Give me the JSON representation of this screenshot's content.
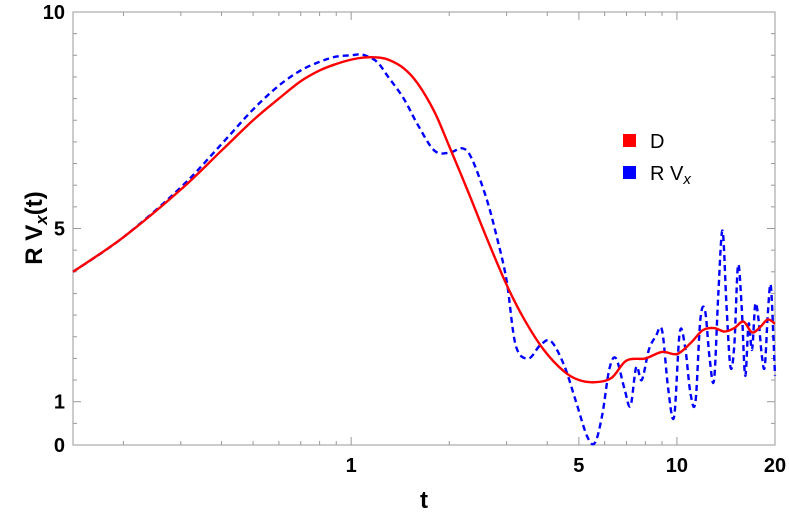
{
  "chart_data": {
    "type": "line",
    "title": "",
    "xlabel": "t",
    "ylabel_main": "R V",
    "ylabel_sub": "x",
    "ylabel_tail": "(t)",
    "x_scale": "log",
    "xlim": [
      0.14,
      20
    ],
    "ylim": [
      0,
      10
    ],
    "x_ticks": [
      1,
      5,
      10,
      20
    ],
    "x_tick_labels": [
      "1",
      "5",
      "10",
      "20"
    ],
    "y_ticks": [
      0,
      1,
      5,
      10
    ],
    "y_tick_labels": [
      "0",
      "1",
      "5",
      "10"
    ],
    "grid": false,
    "legend_position": "right",
    "series": [
      {
        "name": "D",
        "legend_main": "D",
        "legend_sub": "",
        "color": "#ff0000",
        "style": "solid",
        "x": [
          0.14,
          0.2,
          0.3,
          0.4,
          0.5,
          0.6,
          0.7,
          0.8,
          0.9,
          1.0,
          1.1,
          1.2,
          1.3,
          1.45,
          1.6,
          1.8,
          2.0,
          2.3,
          2.6,
          3.0,
          3.4,
          3.9,
          4.5,
          5.0,
          5.6,
          6.3,
          7.0,
          8.0,
          9.0,
          10.0,
          11.0,
          12.0,
          13.0,
          14.0,
          15.0,
          16.0,
          17.0,
          18.0,
          19.0,
          20.0
        ],
        "values": [
          4.0,
          4.8,
          5.9,
          6.8,
          7.5,
          8.0,
          8.4,
          8.65,
          8.8,
          8.9,
          8.95,
          8.95,
          8.9,
          8.7,
          8.35,
          7.7,
          6.9,
          5.8,
          4.8,
          3.7,
          2.9,
          2.2,
          1.7,
          1.5,
          1.45,
          1.55,
          1.95,
          2.0,
          2.15,
          2.1,
          2.35,
          2.65,
          2.7,
          2.62,
          2.7,
          2.85,
          2.6,
          2.72,
          2.9,
          2.8
        ]
      },
      {
        "name": "R V_x",
        "legend_main": "R V",
        "legend_sub": "x",
        "color": "#0000ff",
        "style": "dashed",
        "x": [
          0.14,
          0.2,
          0.3,
          0.4,
          0.5,
          0.6,
          0.7,
          0.8,
          0.9,
          1.0,
          1.05,
          1.1,
          1.2,
          1.3,
          1.45,
          1.6,
          1.8,
          2.0,
          2.2,
          2.35,
          2.6,
          2.8,
          3.0,
          3.2,
          3.5,
          3.8,
          4.1,
          4.5,
          4.9,
          5.3,
          5.6,
          5.9,
          6.2,
          6.5,
          6.9,
          7.2,
          7.5,
          7.8,
          8.2,
          8.6,
          9.0,
          9.4,
          9.8,
          10.2,
          10.6,
          11.0,
          11.4,
          11.8,
          12.2,
          12.6,
          13.0,
          13.4,
          13.8,
          14.2,
          14.6,
          15.0,
          15.4,
          15.8,
          16.2,
          16.6,
          17.0,
          17.4,
          17.8,
          18.2,
          18.6,
          19.0,
          19.4,
          19.8,
          20.0
        ],
        "values": [
          4.0,
          4.8,
          5.95,
          6.95,
          7.75,
          8.3,
          8.65,
          8.85,
          8.97,
          9.0,
          9.02,
          9.0,
          8.85,
          8.5,
          8.0,
          7.4,
          6.8,
          6.75,
          6.85,
          6.6,
          5.7,
          4.8,
          3.8,
          2.3,
          2.0,
          2.3,
          2.4,
          1.85,
          1.0,
          0.2,
          0.05,
          0.7,
          1.75,
          2.0,
          1.3,
          0.9,
          1.8,
          1.5,
          2.2,
          2.5,
          2.65,
          1.3,
          0.65,
          2.6,
          2.25,
          1.2,
          1.0,
          2.9,
          3.1,
          2.0,
          1.5,
          3.5,
          4.95,
          3.2,
          1.8,
          2.3,
          4.15,
          3.2,
          1.6,
          2.8,
          2.2,
          3.25,
          2.9,
          2.1,
          1.8,
          3.0,
          3.7,
          2.4,
          1.6
        ]
      }
    ]
  }
}
